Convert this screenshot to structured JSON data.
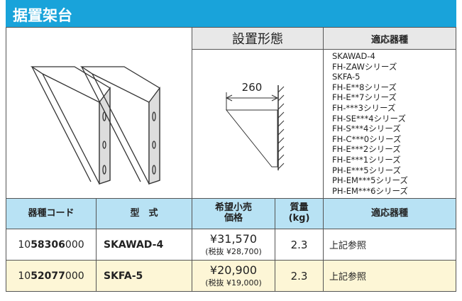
{
  "header": {
    "title": "据置架台"
  },
  "top": {
    "form_header": "設置形態",
    "dimension": "260",
    "models_header": "適応器種",
    "models": [
      "SKAWAD-4",
      "FH-ZAWシリーズ",
      "SKFA-5",
      "FH-E**8シリーズ",
      "FH-E**7シリーズ",
      "FH-***3シリーズ",
      "FH-SE***4シリーズ",
      "FH-S***4シリーズ",
      "FH-C***0シリーズ",
      "FH-E***2シリーズ",
      "FH-E***1シリーズ",
      "PH-E***5シリーズ",
      "PH-EM***5シリーズ",
      "PH-EM***6シリーズ"
    ]
  },
  "table": {
    "headers": [
      "器種コード",
      "型　式",
      "希望小売\n価格",
      "質量\n(kg)",
      "適応器種"
    ],
    "rows": [
      {
        "code": {
          "prefix": "10",
          "bold": "58306",
          "suffix": "000"
        },
        "model": "SKAWAD-4",
        "price": "¥31,570",
        "price_note": "(税抜 ¥28,700)",
        "weight": "2.3",
        "models": "上記参照"
      },
      {
        "code": {
          "prefix": "10",
          "bold": "52077",
          "suffix": "000"
        },
        "model": "SKFA-5",
        "price": "¥20,900",
        "price_note": "(税抜 ¥19,000)",
        "weight": "2.3",
        "models": "上記参照"
      }
    ]
  }
}
